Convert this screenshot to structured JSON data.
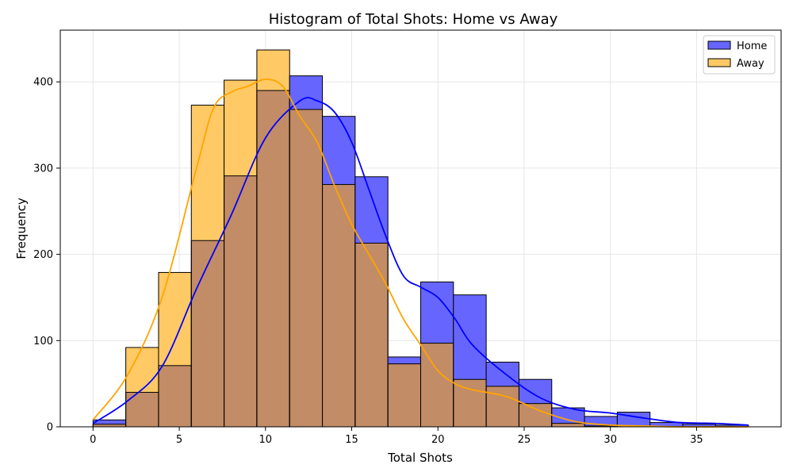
{
  "chart_data": {
    "type": "bar",
    "title": "Histogram of Total Shots: Home vs Away",
    "xlabel": "Total Shots",
    "ylabel": "Frequency",
    "xlim": [
      -1.9,
      39.9
    ],
    "ylim": [
      0,
      460
    ],
    "x_ticks": [
      0,
      5,
      10,
      15,
      20,
      25,
      30,
      35
    ],
    "y_ticks": [
      0,
      100,
      200,
      300,
      400
    ],
    "grid": true,
    "legend_position": "top-right",
    "bin_edges": [
      0,
      1.9,
      3.8,
      5.7,
      7.6,
      9.5,
      11.4,
      13.3,
      15.2,
      17.1,
      19.0,
      20.9,
      22.8,
      24.7,
      26.6,
      28.5,
      30.4,
      32.3,
      34.2,
      36.1,
      38.0
    ],
    "series": [
      {
        "name": "Home",
        "color": "#0000ff",
        "values": [
          8,
          40,
          71,
          216,
          291,
          390,
          407,
          360,
          290,
          81,
          168,
          153,
          75,
          55,
          22,
          12,
          17,
          5,
          3,
          2
        ],
        "kde_x": [
          0,
          2,
          4,
          6,
          8,
          10,
          12,
          13,
          14,
          15,
          16,
          17,
          18,
          19,
          20,
          21,
          22,
          24,
          26,
          28,
          30,
          32,
          34,
          36,
          38
        ],
        "kde_y": [
          4,
          30,
          70,
          160,
          245,
          335,
          378,
          378,
          365,
          330,
          275,
          220,
          175,
          162,
          150,
          125,
          95,
          60,
          33,
          20,
          16,
          10,
          5,
          4,
          2
        ]
      },
      {
        "name": "Away",
        "color": "#ffa500",
        "values": [
          3,
          92,
          179,
          373,
          402,
          437,
          368,
          281,
          213,
          73,
          97,
          55,
          47,
          27,
          4,
          1,
          0,
          0,
          0,
          0
        ],
        "kde_x": [
          0,
          2,
          4,
          6,
          7,
          8,
          9,
          10,
          11,
          12,
          13,
          14,
          15,
          16,
          17,
          18,
          19,
          20,
          21,
          22,
          24,
          26,
          28,
          30,
          32,
          34,
          38
        ],
        "kde_y": [
          8,
          60,
          150,
          300,
          370,
          388,
          395,
          403,
          395,
          360,
          330,
          280,
          235,
          200,
          165,
          125,
          95,
          65,
          50,
          43,
          35,
          18,
          6,
          2,
          1,
          0,
          0
        ]
      }
    ]
  }
}
